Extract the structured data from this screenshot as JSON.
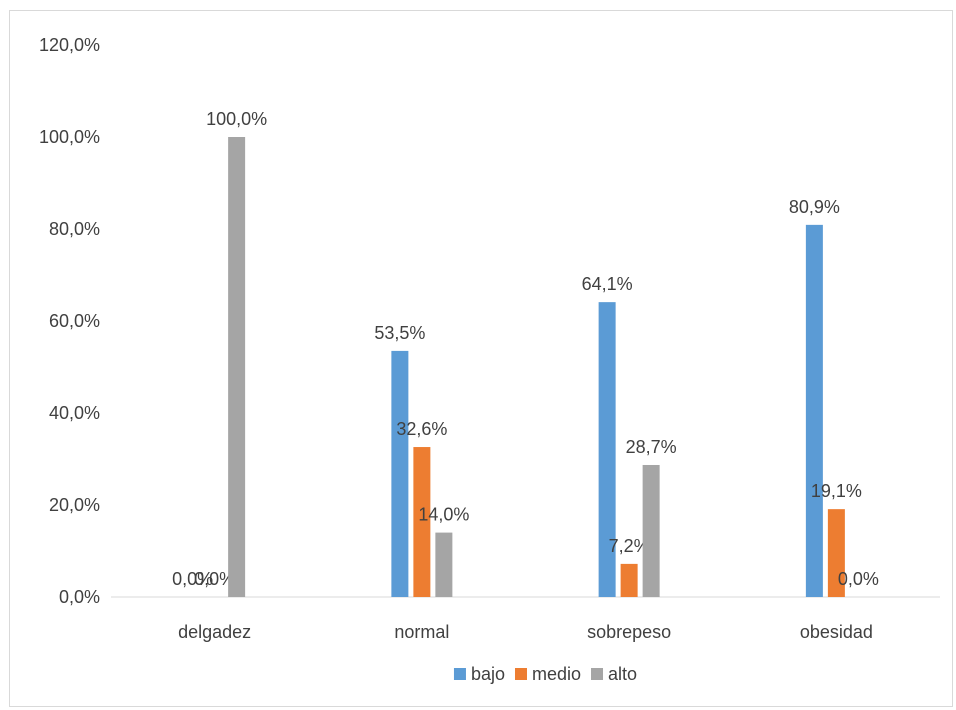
{
  "chart_data": {
    "type": "bar",
    "categories": [
      "delgadez",
      "normal",
      "sobrepeso",
      "obesidad"
    ],
    "series": [
      {
        "name": "bajo",
        "color": "#5b9bd5",
        "values": [
          0.0,
          53.5,
          64.1,
          80.9
        ],
        "labels": [
          "0,0%",
          "53,5%",
          "64,1%",
          "80,9%"
        ]
      },
      {
        "name": "medio",
        "color": "#ed7d31",
        "values": [
          0.0,
          32.6,
          7.2,
          19.1
        ],
        "labels": [
          "0,0%",
          "32,6%",
          "7,2%",
          "19,1%"
        ]
      },
      {
        "name": "alto",
        "color": "#a5a5a5",
        "values": [
          100.0,
          14.0,
          28.7,
          0.0
        ],
        "labels": [
          "100,0%",
          "14,0%",
          "28,7%",
          "0,0%"
        ]
      }
    ],
    "ylim": [
      0,
      120
    ],
    "yticks": [
      0,
      20,
      40,
      60,
      80,
      100,
      120
    ],
    "ytick_labels": [
      "0,0%",
      "20,0%",
      "40,0%",
      "60,0%",
      "80,0%",
      "100,0%",
      "120,0%"
    ],
    "grid": false,
    "legend_position": "bottom"
  }
}
